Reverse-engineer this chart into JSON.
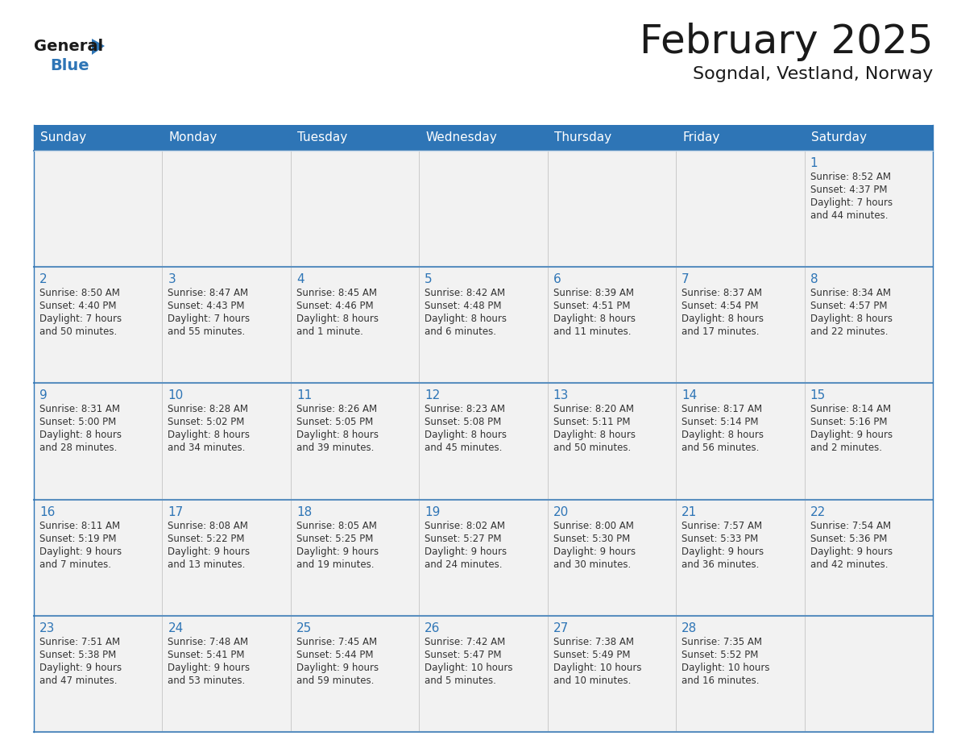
{
  "title": "February 2025",
  "subtitle": "Sogndal, Vestland, Norway",
  "header_color": "#2e75b6",
  "header_text_color": "#ffffff",
  "cell_bg_color": "#f2f2f2",
  "border_color": "#2e75b6",
  "row_border_color": "#5a8fc0",
  "day_number_color": "#2e75b6",
  "text_color": "#333333",
  "days_of_week": [
    "Sunday",
    "Monday",
    "Tuesday",
    "Wednesday",
    "Thursday",
    "Friday",
    "Saturday"
  ],
  "weeks": [
    [
      null,
      null,
      null,
      null,
      null,
      null,
      1
    ],
    [
      2,
      3,
      4,
      5,
      6,
      7,
      8
    ],
    [
      9,
      10,
      11,
      12,
      13,
      14,
      15
    ],
    [
      16,
      17,
      18,
      19,
      20,
      21,
      22
    ],
    [
      23,
      24,
      25,
      26,
      27,
      28,
      null
    ]
  ],
  "cell_data": {
    "1": {
      "sunrise": "8:52 AM",
      "sunset": "4:37 PM",
      "daylight": "7 hours",
      "daylight2": "and 44 minutes."
    },
    "2": {
      "sunrise": "8:50 AM",
      "sunset": "4:40 PM",
      "daylight": "7 hours",
      "daylight2": "and 50 minutes."
    },
    "3": {
      "sunrise": "8:47 AM",
      "sunset": "4:43 PM",
      "daylight": "7 hours",
      "daylight2": "and 55 minutes."
    },
    "4": {
      "sunrise": "8:45 AM",
      "sunset": "4:46 PM",
      "daylight": "8 hours",
      "daylight2": "and 1 minute."
    },
    "5": {
      "sunrise": "8:42 AM",
      "sunset": "4:48 PM",
      "daylight": "8 hours",
      "daylight2": "and 6 minutes."
    },
    "6": {
      "sunrise": "8:39 AM",
      "sunset": "4:51 PM",
      "daylight": "8 hours",
      "daylight2": "and 11 minutes."
    },
    "7": {
      "sunrise": "8:37 AM",
      "sunset": "4:54 PM",
      "daylight": "8 hours",
      "daylight2": "and 17 minutes."
    },
    "8": {
      "sunrise": "8:34 AM",
      "sunset": "4:57 PM",
      "daylight": "8 hours",
      "daylight2": "and 22 minutes."
    },
    "9": {
      "sunrise": "8:31 AM",
      "sunset": "5:00 PM",
      "daylight": "8 hours",
      "daylight2": "and 28 minutes."
    },
    "10": {
      "sunrise": "8:28 AM",
      "sunset": "5:02 PM",
      "daylight": "8 hours",
      "daylight2": "and 34 minutes."
    },
    "11": {
      "sunrise": "8:26 AM",
      "sunset": "5:05 PM",
      "daylight": "8 hours",
      "daylight2": "and 39 minutes."
    },
    "12": {
      "sunrise": "8:23 AM",
      "sunset": "5:08 PM",
      "daylight": "8 hours",
      "daylight2": "and 45 minutes."
    },
    "13": {
      "sunrise": "8:20 AM",
      "sunset": "5:11 PM",
      "daylight": "8 hours",
      "daylight2": "and 50 minutes."
    },
    "14": {
      "sunrise": "8:17 AM",
      "sunset": "5:14 PM",
      "daylight": "8 hours",
      "daylight2": "and 56 minutes."
    },
    "15": {
      "sunrise": "8:14 AM",
      "sunset": "5:16 PM",
      "daylight": "9 hours",
      "daylight2": "and 2 minutes."
    },
    "16": {
      "sunrise": "8:11 AM",
      "sunset": "5:19 PM",
      "daylight": "9 hours",
      "daylight2": "and 7 minutes."
    },
    "17": {
      "sunrise": "8:08 AM",
      "sunset": "5:22 PM",
      "daylight": "9 hours",
      "daylight2": "and 13 minutes."
    },
    "18": {
      "sunrise": "8:05 AM",
      "sunset": "5:25 PM",
      "daylight": "9 hours",
      "daylight2": "and 19 minutes."
    },
    "19": {
      "sunrise": "8:02 AM",
      "sunset": "5:27 PM",
      "daylight": "9 hours",
      "daylight2": "and 24 minutes."
    },
    "20": {
      "sunrise": "8:00 AM",
      "sunset": "5:30 PM",
      "daylight": "9 hours",
      "daylight2": "and 30 minutes."
    },
    "21": {
      "sunrise": "7:57 AM",
      "sunset": "5:33 PM",
      "daylight": "9 hours",
      "daylight2": "and 36 minutes."
    },
    "22": {
      "sunrise": "7:54 AM",
      "sunset": "5:36 PM",
      "daylight": "9 hours",
      "daylight2": "and 42 minutes."
    },
    "23": {
      "sunrise": "7:51 AM",
      "sunset": "5:38 PM",
      "daylight": "9 hours",
      "daylight2": "and 47 minutes."
    },
    "24": {
      "sunrise": "7:48 AM",
      "sunset": "5:41 PM",
      "daylight": "9 hours",
      "daylight2": "and 53 minutes."
    },
    "25": {
      "sunrise": "7:45 AM",
      "sunset": "5:44 PM",
      "daylight": "9 hours",
      "daylight2": "and 59 minutes."
    },
    "26": {
      "sunrise": "7:42 AM",
      "sunset": "5:47 PM",
      "daylight": "10 hours",
      "daylight2": "and 5 minutes."
    },
    "27": {
      "sunrise": "7:38 AM",
      "sunset": "5:49 PM",
      "daylight": "10 hours",
      "daylight2": "and 10 minutes."
    },
    "28": {
      "sunrise": "7:35 AM",
      "sunset": "5:52 PM",
      "daylight": "10 hours",
      "daylight2": "and 16 minutes."
    }
  },
  "logo_general_color": "#1a1a1a",
  "logo_blue_color": "#2e75b6",
  "title_fontsize": 36,
  "subtitle_fontsize": 16,
  "header_fontsize": 11,
  "day_number_fontsize": 11,
  "cell_text_fontsize": 8.5
}
